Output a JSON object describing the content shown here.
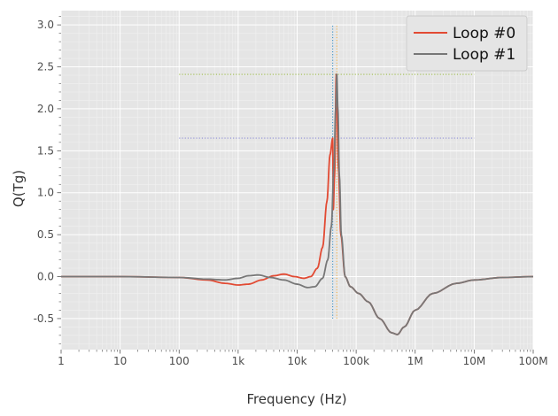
{
  "chart_data": {
    "type": "line",
    "title": "",
    "xlabel": "Frequency (Hz)",
    "ylabel": "Q(Tg)",
    "x_scale": "log",
    "xlim": [
      1,
      100000000
    ],
    "ylim": [
      -0.87,
      3.17
    ],
    "x_ticks": [
      {
        "value": 1,
        "label": "1"
      },
      {
        "value": 10,
        "label": "10"
      },
      {
        "value": 100,
        "label": "100"
      },
      {
        "value": 1000,
        "label": "1k"
      },
      {
        "value": 10000,
        "label": "10k"
      },
      {
        "value": 100000,
        "label": "100k"
      },
      {
        "value": 1000000,
        "label": "1M"
      },
      {
        "value": 10000000,
        "label": "10M"
      },
      {
        "value": 100000000,
        "label": "100M"
      }
    ],
    "y_ticks": [
      {
        "value": -0.5,
        "label": "-0.5"
      },
      {
        "value": 0.0,
        "label": "0.0"
      },
      {
        "value": 0.5,
        "label": "0.5"
      },
      {
        "value": 1.0,
        "label": "1.0"
      },
      {
        "value": 1.5,
        "label": "1.5"
      },
      {
        "value": 2.0,
        "label": "2.0"
      },
      {
        "value": 2.5,
        "label": "2.5"
      },
      {
        "value": 3.0,
        "label": "3.0"
      }
    ],
    "grid": true,
    "legend_position": "top-right",
    "series": [
      {
        "name": "Loop #0",
        "color": "#e24a33",
        "points": [
          [
            1,
            0.0
          ],
          [
            10,
            0.0
          ],
          [
            100,
            -0.01
          ],
          [
            300,
            -0.04
          ],
          [
            600,
            -0.08
          ],
          [
            1000,
            -0.1
          ],
          [
            1500,
            -0.09
          ],
          [
            2500,
            -0.04
          ],
          [
            4000,
            0.01
          ],
          [
            6000,
            0.03
          ],
          [
            9000,
            0.0
          ],
          [
            13000,
            -0.02
          ],
          [
            17000,
            0.0
          ],
          [
            22000,
            0.1
          ],
          [
            27000,
            0.35
          ],
          [
            32000,
            0.9
          ],
          [
            36000,
            1.45
          ],
          [
            40000,
            1.65
          ],
          [
            41000,
            0.8
          ],
          [
            43000,
            1.2
          ],
          [
            46000,
            2.41
          ],
          [
            50000,
            1.3
          ],
          [
            55000,
            0.5
          ],
          [
            65000,
            0.0
          ],
          [
            80000,
            -0.12
          ],
          [
            110000,
            -0.2
          ],
          [
            160000,
            -0.3
          ],
          [
            250000,
            -0.5
          ],
          [
            400000,
            -0.67
          ],
          [
            500000,
            -0.69
          ],
          [
            650000,
            -0.6
          ],
          [
            1000000,
            -0.4
          ],
          [
            2000000,
            -0.2
          ],
          [
            5000000,
            -0.08
          ],
          [
            10000000,
            -0.04
          ],
          [
            30000000,
            -0.01
          ],
          [
            100000000,
            0.0
          ]
        ]
      },
      {
        "name": "Loop #1",
        "color": "#777777",
        "points": [
          [
            1,
            0.0
          ],
          [
            10,
            0.0
          ],
          [
            100,
            -0.01
          ],
          [
            300,
            -0.03
          ],
          [
            600,
            -0.04
          ],
          [
            1000,
            -0.02
          ],
          [
            1500,
            0.01
          ],
          [
            2200,
            0.02
          ],
          [
            3500,
            -0.01
          ],
          [
            6000,
            -0.04
          ],
          [
            10000,
            -0.09
          ],
          [
            15000,
            -0.13
          ],
          [
            20000,
            -0.12
          ],
          [
            27000,
            -0.02
          ],
          [
            33000,
            0.2
          ],
          [
            38000,
            0.6
          ],
          [
            42000,
            1.3
          ],
          [
            45000,
            2.0
          ],
          [
            47000,
            2.41
          ],
          [
            49000,
            2.0
          ],
          [
            52000,
            1.2
          ],
          [
            56000,
            0.5
          ],
          [
            65000,
            0.0
          ],
          [
            80000,
            -0.12
          ],
          [
            110000,
            -0.2
          ],
          [
            160000,
            -0.3
          ],
          [
            250000,
            -0.5
          ],
          [
            400000,
            -0.67
          ],
          [
            500000,
            -0.69
          ],
          [
            650000,
            -0.6
          ],
          [
            1000000,
            -0.4
          ],
          [
            2000000,
            -0.2
          ],
          [
            5000000,
            -0.08
          ],
          [
            10000000,
            -0.04
          ],
          [
            30000000,
            -0.01
          ],
          [
            100000000,
            0.0
          ]
        ]
      }
    ],
    "reference_lines": [
      {
        "orientation": "horizontal",
        "value": 2.41,
        "from": 100,
        "to": 10000000,
        "color": "#9dbb4a"
      },
      {
        "orientation": "horizontal",
        "value": 1.65,
        "from": 100,
        "to": 10000000,
        "color": "#8f8fd6"
      },
      {
        "orientation": "vertical",
        "value": 40000,
        "from": -0.5,
        "to": 3.0,
        "color": "#3b8fc4"
      },
      {
        "orientation": "vertical",
        "value": 47000,
        "from": -0.5,
        "to": 3.0,
        "color": "#f2b24a"
      }
    ]
  }
}
